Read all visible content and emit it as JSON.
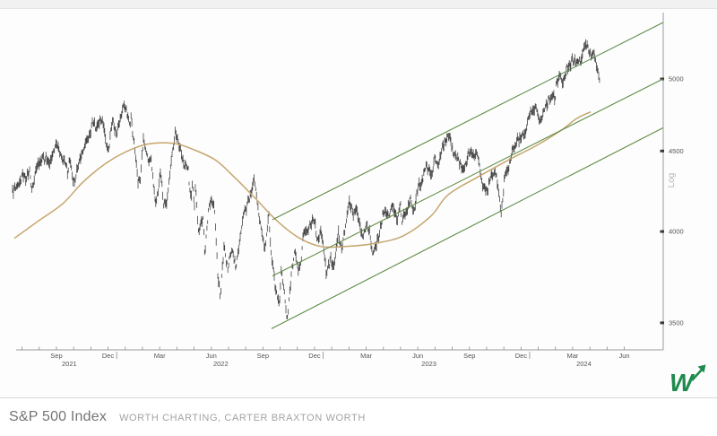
{
  "caption": {
    "title": "S&P 500 Index",
    "subtitle": "WORTH CHARTING, CARTER BRAXTON WORTH"
  },
  "logo": {
    "letter": "W",
    "icon": "arrow-up-right-icon",
    "color": "#1f8a4d"
  },
  "chart_data": {
    "type": "line",
    "title": "S&P 500 Index",
    "scale": "log",
    "ylabel": "Log",
    "ylim": [
      3400,
      5550
    ],
    "yticks": [
      5000,
      4500,
      4000,
      3500
    ],
    "grid": "off",
    "legend": "none",
    "colors": {
      "price": "#2d2d2d",
      "moving_average": "#c6a66e",
      "channel": "#5f8c46",
      "axis": "#9a9a9a",
      "tick_label": "#555555",
      "ylabel_text": "#b5b5b5"
    },
    "x_axis": {
      "note": "m = months since 2021-06-15; range mid-2021 to mid-2024",
      "data_end_m": 34.13,
      "minor_ticks": {
        "start": 0.55,
        "step": 1,
        "count": 36
      },
      "quarter_ticks": [
        {
          "label": "Sep",
          "m": 2.55
        },
        {
          "label": "Dec",
          "m": 5.55
        },
        {
          "label": "Mar",
          "m": 8.55
        },
        {
          "label": "Jun",
          "m": 11.55
        },
        {
          "label": "Sep",
          "m": 14.55
        },
        {
          "label": "Dec",
          "m": 17.55
        },
        {
          "label": "Mar",
          "m": 20.55
        },
        {
          "label": "Jun",
          "m": 23.55
        },
        {
          "label": "Sep",
          "m": 26.55
        },
        {
          "label": "Dec",
          "m": 29.55
        },
        {
          "label": "Mar",
          "m": 32.55
        },
        {
          "label": "Jun",
          "m": 35.55
        }
      ],
      "year_labels": [
        {
          "label": "2021",
          "m": 3.3
        },
        {
          "label": "2022",
          "m": 12.1
        },
        {
          "label": "2023",
          "m": 24.2
        },
        {
          "label": "2024",
          "m": 33.2
        }
      ],
      "year_separators": [
        6.05,
        18.05,
        30.05
      ]
    },
    "series": [
      {
        "name": "S&P 500 daily price bars",
        "style": "ohlc-bars",
        "color": "#2d2d2d",
        "points": [
          [
            0.0,
            4246
          ],
          [
            0.33,
            4280
          ],
          [
            0.57,
            4352
          ],
          [
            0.77,
            4321
          ],
          [
            0.97,
            4374
          ],
          [
            1.13,
            4258
          ],
          [
            1.47,
            4419
          ],
          [
            1.7,
            4437
          ],
          [
            1.93,
            4468
          ],
          [
            2.13,
            4406
          ],
          [
            2.4,
            4509
          ],
          [
            2.6,
            4546
          ],
          [
            2.83,
            4459
          ],
          [
            3.07,
            4433
          ],
          [
            3.2,
            4354
          ],
          [
            3.33,
            4455
          ],
          [
            3.5,
            4308
          ],
          [
            3.63,
            4300
          ],
          [
            3.77,
            4391
          ],
          [
            4.0,
            4471
          ],
          [
            4.23,
            4545
          ],
          [
            4.47,
            4605
          ],
          [
            4.7,
            4698
          ],
          [
            4.87,
            4647
          ],
          [
            5.1,
            4705
          ],
          [
            5.23,
            4719
          ],
          [
            5.37,
            4595
          ],
          [
            5.53,
            4513
          ],
          [
            5.6,
            4538
          ],
          [
            5.83,
            4712
          ],
          [
            5.97,
            4634
          ],
          [
            6.07,
            4621
          ],
          [
            6.4,
            4791
          ],
          [
            6.6,
            4800
          ],
          [
            6.83,
            4670
          ],
          [
            6.9,
            4726
          ],
          [
            7.2,
            4398
          ],
          [
            7.3,
            4300
          ],
          [
            7.43,
            4327
          ],
          [
            7.6,
            4589
          ],
          [
            7.9,
            4419
          ],
          [
            8.03,
            4475
          ],
          [
            8.3,
            4150
          ],
          [
            8.6,
            4363
          ],
          [
            8.77,
            4170
          ],
          [
            8.97,
            4173
          ],
          [
            9.2,
            4420
          ],
          [
            9.47,
            4631
          ],
          [
            9.7,
            4525
          ],
          [
            9.8,
            4488
          ],
          [
            10.0,
            4393
          ],
          [
            10.2,
            4393
          ],
          [
            10.37,
            4175
          ],
          [
            10.43,
            4287
          ],
          [
            10.57,
            4155
          ],
          [
            10.63,
            4300
          ],
          [
            10.8,
            3991
          ],
          [
            11.07,
            4089
          ],
          [
            11.17,
            3860
          ],
          [
            11.4,
            4158
          ],
          [
            11.57,
            4177
          ],
          [
            11.73,
            4160
          ],
          [
            11.93,
            3750
          ],
          [
            12.07,
            3650
          ],
          [
            12.3,
            3912
          ],
          [
            12.5,
            3785
          ],
          [
            12.77,
            3899
          ],
          [
            12.97,
            3790
          ],
          [
            13.23,
            3962
          ],
          [
            13.47,
            4130
          ],
          [
            13.63,
            4152
          ],
          [
            13.83,
            4210
          ],
          [
            14.03,
            4325
          ],
          [
            14.37,
            4058
          ],
          [
            14.6,
            3924
          ],
          [
            14.7,
            3908
          ],
          [
            14.9,
            4110
          ],
          [
            15.03,
            3873
          ],
          [
            15.27,
            3693
          ],
          [
            15.5,
            3586
          ],
          [
            15.63,
            3791
          ],
          [
            15.87,
            3577
          ],
          [
            15.95,
            3500
          ],
          [
            16.2,
            3753
          ],
          [
            16.43,
            3901
          ],
          [
            16.6,
            3760
          ],
          [
            16.77,
            3828
          ],
          [
            16.9,
            3993
          ],
          [
            17.0,
            3992
          ],
          [
            17.27,
            4027
          ],
          [
            17.53,
            4077
          ],
          [
            17.73,
            3934
          ],
          [
            17.93,
            4020
          ],
          [
            18.23,
            3764
          ],
          [
            18.5,
            3840
          ],
          [
            18.7,
            3808
          ],
          [
            18.93,
            3999
          ],
          [
            19.13,
            3899
          ],
          [
            19.4,
            4071
          ],
          [
            19.6,
            4180
          ],
          [
            19.83,
            4090
          ],
          [
            20.0,
            4148
          ],
          [
            20.3,
            3970
          ],
          [
            20.6,
            4045
          ],
          [
            20.77,
            3992
          ],
          [
            20.93,
            3856
          ],
          [
            21.07,
            3917
          ],
          [
            21.3,
            3971
          ],
          [
            21.53,
            4109
          ],
          [
            21.87,
            4109
          ],
          [
            22.1,
            4155
          ],
          [
            22.37,
            4056
          ],
          [
            22.53,
            4168
          ],
          [
            22.63,
            4061
          ],
          [
            22.9,
            4124
          ],
          [
            23.13,
            4192
          ],
          [
            23.3,
            4115
          ],
          [
            23.6,
            4282
          ],
          [
            23.8,
            4299
          ],
          [
            24.03,
            4410
          ],
          [
            24.37,
            4329
          ],
          [
            24.5,
            4450
          ],
          [
            24.73,
            4399
          ],
          [
            24.97,
            4505
          ],
          [
            25.13,
            4566
          ],
          [
            25.4,
            4607
          ],
          [
            25.63,
            4478
          ],
          [
            25.87,
            4464
          ],
          [
            26.1,
            4370
          ],
          [
            26.33,
            4406
          ],
          [
            26.57,
            4516
          ],
          [
            26.8,
            4457
          ],
          [
            27.0,
            4505
          ],
          [
            27.23,
            4320
          ],
          [
            27.4,
            4274
          ],
          [
            27.6,
            4229
          ],
          [
            27.7,
            4309
          ],
          [
            27.9,
            4350
          ],
          [
            28.07,
            4373
          ],
          [
            28.4,
            4117
          ],
          [
            28.63,
            4358
          ],
          [
            28.87,
            4415
          ],
          [
            29.07,
            4514
          ],
          [
            29.3,
            4559
          ],
          [
            29.53,
            4594
          ],
          [
            29.77,
            4604
          ],
          [
            29.97,
            4720
          ],
          [
            30.13,
            4768
          ],
          [
            30.43,
            4783
          ],
          [
            30.67,
            4697
          ],
          [
            30.9,
            4784
          ],
          [
            31.13,
            4840
          ],
          [
            31.37,
            4891
          ],
          [
            31.53,
            4846
          ],
          [
            31.6,
            4959
          ],
          [
            31.83,
            5027
          ],
          [
            31.93,
            4953
          ],
          [
            32.27,
            5088
          ],
          [
            32.53,
            5137
          ],
          [
            32.77,
            5124
          ],
          [
            33.0,
            5117
          ],
          [
            33.2,
            5241
          ],
          [
            33.43,
            5254
          ],
          [
            33.63,
            5147
          ],
          [
            33.8,
            5210
          ],
          [
            33.9,
            5123
          ],
          [
            34.0,
            5062
          ],
          [
            34.13,
            4967
          ]
        ]
      },
      {
        "name": "moving average",
        "style": "smooth-line",
        "color": "#c6a66e",
        "points": [
          [
            0.1,
            3960
          ],
          [
            1.4,
            4055
          ],
          [
            2.9,
            4165
          ],
          [
            4.0,
            4290
          ],
          [
            5.0,
            4385
          ],
          [
            6.0,
            4460
          ],
          [
            7.1,
            4520
          ],
          [
            8.1,
            4550
          ],
          [
            9.4,
            4550
          ],
          [
            10.5,
            4510
          ],
          [
            11.8,
            4440
          ],
          [
            12.9,
            4330
          ],
          [
            14.1,
            4200
          ],
          [
            15.4,
            4060
          ],
          [
            16.7,
            3960
          ],
          [
            18.0,
            3912
          ],
          [
            19.6,
            3915
          ],
          [
            21.1,
            3932
          ],
          [
            22.7,
            3975
          ],
          [
            24.3,
            4090
          ],
          [
            25.3,
            4220
          ],
          [
            27.0,
            4330
          ],
          [
            28.8,
            4440
          ],
          [
            30.5,
            4540
          ],
          [
            31.9,
            4640
          ],
          [
            32.8,
            4720
          ],
          [
            33.6,
            4765
          ]
        ]
      }
    ],
    "trend_channel": {
      "color": "#5f8c46",
      "lines": [
        {
          "name": "upper",
          "m1": 15.1,
          "v1": 4070,
          "m2": 37.8,
          "v2": 5430
        },
        {
          "name": "middle",
          "m1": 15.1,
          "v1": 3748,
          "m2": 37.8,
          "v2": 5000
        },
        {
          "name": "lower",
          "m1": 15.05,
          "v1": 3470,
          "m2": 37.8,
          "v2": 4655
        }
      ]
    }
  }
}
